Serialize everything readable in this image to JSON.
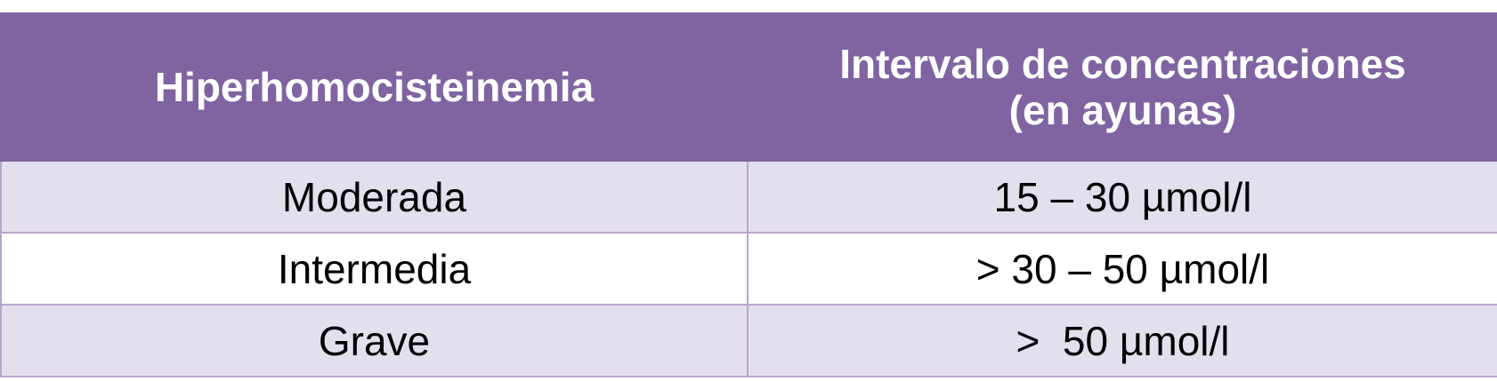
{
  "table": {
    "header": {
      "col1": "Hiperhomocisteinemia",
      "col2_line1": "Intervalo de concentraciones",
      "col2_line2": "(en ayunas)"
    },
    "rows": [
      {
        "severity": "Moderada",
        "range": "15 – 30 µmol/l"
      },
      {
        "severity": "Intermedia",
        "range": "> 30 – 50 µmol/l"
      },
      {
        "severity": "Grave",
        "range": ">  50 µmol/l"
      }
    ]
  },
  "colors": {
    "header_bg": "#8064a2",
    "header_text": "#ffffff",
    "band_row": "#e4dfec",
    "plain_row": "#ffffff",
    "grid_line": "#b8a6cc"
  }
}
